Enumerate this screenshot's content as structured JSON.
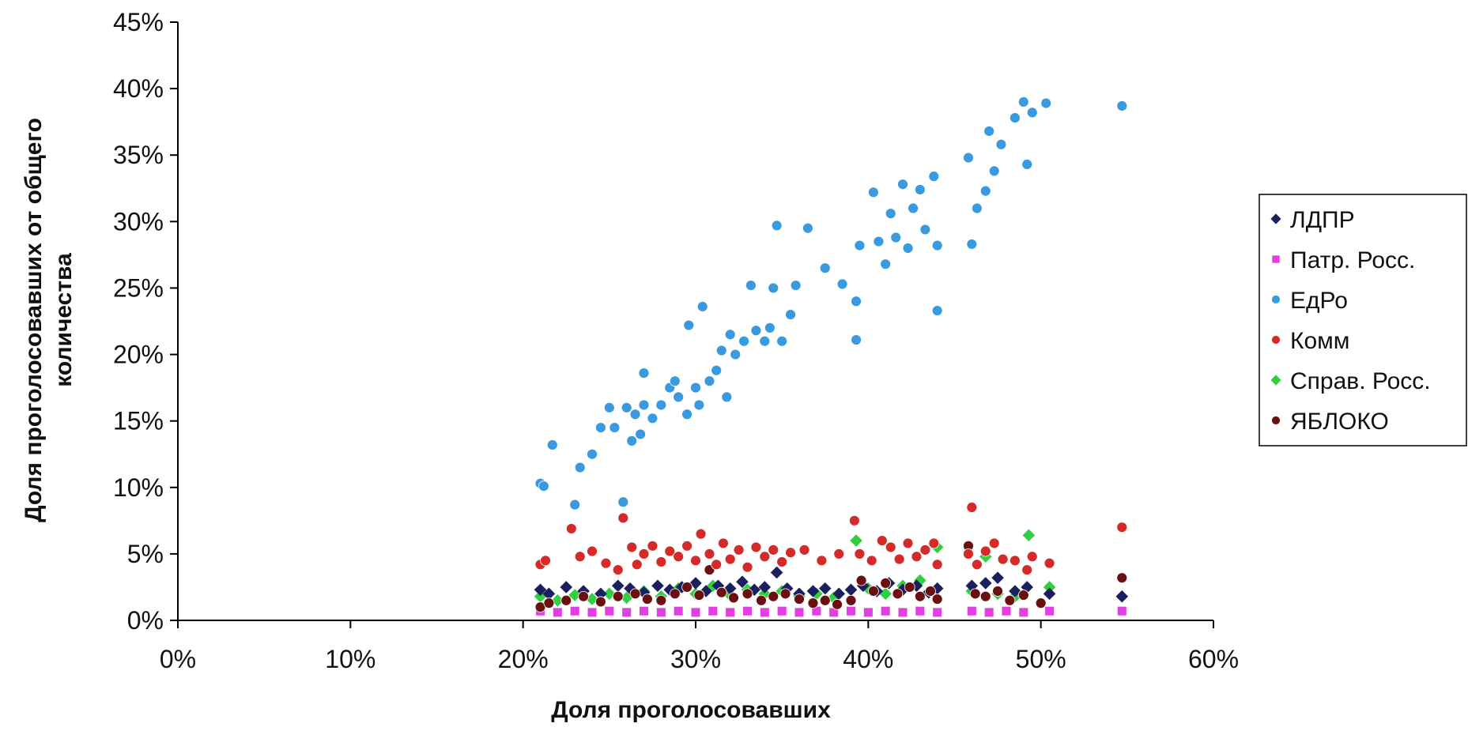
{
  "chart_data": {
    "type": "scatter",
    "title": "",
    "xlabel": "Доля проголосовавших",
    "ylabel_lines": [
      "Доля проголосовавших от общего",
      "количества"
    ],
    "xlim": [
      0,
      60
    ],
    "ylim": [
      0,
      45
    ],
    "x_ticks": [
      0,
      10,
      20,
      30,
      40,
      50,
      60
    ],
    "y_ticks": [
      0,
      5,
      10,
      15,
      20,
      25,
      30,
      35,
      40,
      45
    ],
    "x_tick_labels": [
      "0%",
      "10%",
      "20%",
      "30%",
      "40%",
      "50%",
      "60%"
    ],
    "y_tick_labels": [
      "0%",
      "5%",
      "10%",
      "15%",
      "20%",
      "25%",
      "30%",
      "35%",
      "40%",
      "45%"
    ],
    "grid": false,
    "legend_position": "right",
    "series": [
      {
        "name": "ЛДПР",
        "marker": "diamond",
        "color": "#1a1f5e",
        "points": [
          [
            21,
            2.3
          ],
          [
            21.5,
            2.0
          ],
          [
            22.5,
            2.5
          ],
          [
            23.5,
            2.2
          ],
          [
            24.5,
            2.0
          ],
          [
            25.5,
            2.6
          ],
          [
            26.2,
            2.4
          ],
          [
            27,
            2.1
          ],
          [
            27.8,
            2.6
          ],
          [
            28.5,
            2.3
          ],
          [
            29.2,
            2.5
          ],
          [
            30,
            2.8
          ],
          [
            30.6,
            2.2
          ],
          [
            31.3,
            2.6
          ],
          [
            32,
            2.4
          ],
          [
            32.7,
            2.9
          ],
          [
            33.4,
            2.3
          ],
          [
            34,
            2.5
          ],
          [
            34.7,
            3.6
          ],
          [
            35.3,
            2.4
          ],
          [
            36,
            2.0
          ],
          [
            36.8,
            2.2
          ],
          [
            37.5,
            2.4
          ],
          [
            38.3,
            2.0
          ],
          [
            39,
            2.3
          ],
          [
            39.7,
            2.6
          ],
          [
            40.5,
            2.2
          ],
          [
            41.2,
            2.8
          ],
          [
            42,
            2.3
          ],
          [
            42.8,
            2.6
          ],
          [
            43.5,
            2.1
          ],
          [
            44,
            2.4
          ],
          [
            46,
            2.6
          ],
          [
            46.8,
            2.8
          ],
          [
            47.5,
            3.2
          ],
          [
            48.5,
            2.2
          ],
          [
            49.2,
            2.5
          ],
          [
            50.5,
            2.0
          ],
          [
            54.7,
            1.8
          ]
        ]
      },
      {
        "name": "Патр. Росс.",
        "marker": "square",
        "color": "#e040e0",
        "points": [
          [
            21,
            0.7
          ],
          [
            22,
            0.6
          ],
          [
            23,
            0.7
          ],
          [
            24,
            0.6
          ],
          [
            25,
            0.7
          ],
          [
            26,
            0.6
          ],
          [
            27,
            0.7
          ],
          [
            28,
            0.6
          ],
          [
            29,
            0.7
          ],
          [
            30,
            0.6
          ],
          [
            31,
            0.7
          ],
          [
            32,
            0.6
          ],
          [
            33,
            0.7
          ],
          [
            34,
            0.6
          ],
          [
            35,
            0.7
          ],
          [
            36,
            0.6
          ],
          [
            37,
            0.7
          ],
          [
            38,
            0.6
          ],
          [
            39,
            0.7
          ],
          [
            40,
            0.6
          ],
          [
            41,
            0.7
          ],
          [
            42,
            0.6
          ],
          [
            43,
            0.7
          ],
          [
            44,
            0.6
          ],
          [
            46,
            0.7
          ],
          [
            47,
            0.6
          ],
          [
            48,
            0.7
          ],
          [
            49,
            0.6
          ],
          [
            50.5,
            0.7
          ],
          [
            54.7,
            0.7
          ]
        ]
      },
      {
        "name": "ЕдРо",
        "marker": "circle",
        "color": "#3a9ae0",
        "points": [
          [
            21,
            10.3
          ],
          [
            21.2,
            10.1
          ],
          [
            21.7,
            13.2
          ],
          [
            23,
            8.7
          ],
          [
            23.3,
            11.5
          ],
          [
            24,
            12.5
          ],
          [
            24.5,
            14.5
          ],
          [
            25,
            16
          ],
          [
            25.3,
            14.5
          ],
          [
            25.8,
            8.9
          ],
          [
            26,
            16
          ],
          [
            26.3,
            13.5
          ],
          [
            26.5,
            15.5
          ],
          [
            26.8,
            14
          ],
          [
            27,
            16.2
          ],
          [
            27,
            18.6
          ],
          [
            27.5,
            15.2
          ],
          [
            28,
            16.2
          ],
          [
            28.5,
            17.5
          ],
          [
            28.8,
            18
          ],
          [
            29,
            16.8
          ],
          [
            29.5,
            15.5
          ],
          [
            29.6,
            22.2
          ],
          [
            30,
            17.5
          ],
          [
            30.2,
            16.2
          ],
          [
            30.4,
            23.6
          ],
          [
            30.8,
            18
          ],
          [
            31.2,
            18.8
          ],
          [
            31.5,
            20.3
          ],
          [
            31.8,
            16.8
          ],
          [
            32,
            21.5
          ],
          [
            32.3,
            20
          ],
          [
            32.8,
            21
          ],
          [
            33.2,
            25.2
          ],
          [
            33.5,
            21.8
          ],
          [
            34,
            21
          ],
          [
            34.3,
            22
          ],
          [
            34.5,
            25
          ],
          [
            34.7,
            29.7
          ],
          [
            35,
            21
          ],
          [
            35.5,
            23
          ],
          [
            35.8,
            25.2
          ],
          [
            36.5,
            29.5
          ],
          [
            37.5,
            26.5
          ],
          [
            38.5,
            25.3
          ],
          [
            39.3,
            21.1
          ],
          [
            39.3,
            24
          ],
          [
            39.5,
            28.2
          ],
          [
            40.3,
            32.2
          ],
          [
            40.6,
            28.5
          ],
          [
            41,
            26.8
          ],
          [
            41.3,
            30.6
          ],
          [
            41.6,
            28.8
          ],
          [
            42,
            32.8
          ],
          [
            42.3,
            28
          ],
          [
            42.6,
            31
          ],
          [
            43,
            32.4
          ],
          [
            43.3,
            29.4
          ],
          [
            43.8,
            33.4
          ],
          [
            44,
            23.3
          ],
          [
            44,
            28.2
          ],
          [
            45.8,
            34.8
          ],
          [
            46,
            28.3
          ],
          [
            46.3,
            31
          ],
          [
            46.8,
            32.3
          ],
          [
            47,
            36.8
          ],
          [
            47.3,
            33.8
          ],
          [
            47.7,
            35.8
          ],
          [
            48.5,
            37.8
          ],
          [
            49,
            39
          ],
          [
            49.2,
            34.3
          ],
          [
            49.5,
            38.2
          ],
          [
            50.3,
            38.9
          ],
          [
            54.7,
            38.7
          ]
        ]
      },
      {
        "name": "Комм",
        "marker": "circle",
        "color": "#d42a2a",
        "points": [
          [
            21,
            4.2
          ],
          [
            21.3,
            4.5
          ],
          [
            22.8,
            6.9
          ],
          [
            23.3,
            4.8
          ],
          [
            24,
            5.2
          ],
          [
            24.8,
            4.3
          ],
          [
            25.5,
            3.8
          ],
          [
            25.8,
            7.7
          ],
          [
            26.3,
            5.5
          ],
          [
            26.6,
            4.2
          ],
          [
            27,
            5.0
          ],
          [
            27.5,
            5.6
          ],
          [
            28,
            4.4
          ],
          [
            28.5,
            5.2
          ],
          [
            29,
            4.8
          ],
          [
            29.5,
            5.6
          ],
          [
            30,
            4.5
          ],
          [
            30.3,
            6.5
          ],
          [
            30.8,
            5.0
          ],
          [
            31.2,
            4.2
          ],
          [
            31.6,
            5.8
          ],
          [
            32,
            4.6
          ],
          [
            32.5,
            5.3
          ],
          [
            33,
            4.0
          ],
          [
            33.5,
            5.5
          ],
          [
            34,
            4.8
          ],
          [
            34.5,
            5.3
          ],
          [
            35,
            4.4
          ],
          [
            35.5,
            5.1
          ],
          [
            36.3,
            5.3
          ],
          [
            37.3,
            4.5
          ],
          [
            38.3,
            5.0
          ],
          [
            39.2,
            7.5
          ],
          [
            39.5,
            5.0
          ],
          [
            40.2,
            4.5
          ],
          [
            40.8,
            6.0
          ],
          [
            41.3,
            5.5
          ],
          [
            41.8,
            4.6
          ],
          [
            42.3,
            5.8
          ],
          [
            42.8,
            4.8
          ],
          [
            43.3,
            5.3
          ],
          [
            43.8,
            5.8
          ],
          [
            44,
            4.2
          ],
          [
            45.8,
            5.0
          ],
          [
            46,
            8.5
          ],
          [
            46.3,
            4.2
          ],
          [
            46.8,
            5.2
          ],
          [
            47.3,
            5.8
          ],
          [
            47.8,
            4.6
          ],
          [
            48.5,
            4.5
          ],
          [
            49.2,
            3.8
          ],
          [
            49.5,
            4.8
          ],
          [
            50.5,
            4.3
          ],
          [
            54.7,
            7.0
          ]
        ]
      },
      {
        "name": "Справ. Росс.",
        "marker": "diamond",
        "color": "#30d040",
        "points": [
          [
            21,
            1.8
          ],
          [
            22,
            1.5
          ],
          [
            23,
            1.9
          ],
          [
            24,
            1.6
          ],
          [
            25,
            2.0
          ],
          [
            26,
            1.7
          ],
          [
            27,
            2.2
          ],
          [
            28,
            1.8
          ],
          [
            29,
            2.4
          ],
          [
            30,
            2.0
          ],
          [
            31,
            2.6
          ],
          [
            32,
            1.9
          ],
          [
            33,
            2.3
          ],
          [
            34,
            2.0
          ],
          [
            35,
            2.2
          ],
          [
            36,
            1.8
          ],
          [
            37,
            2.0
          ],
          [
            38,
            1.7
          ],
          [
            39.3,
            6.0
          ],
          [
            40,
            2.4
          ],
          [
            41,
            2.0
          ],
          [
            42,
            2.6
          ],
          [
            43,
            3.0
          ],
          [
            44,
            5.5
          ],
          [
            46,
            2.2
          ],
          [
            46.8,
            4.8
          ],
          [
            47.5,
            2.0
          ],
          [
            48.5,
            1.8
          ],
          [
            49.3,
            6.4
          ],
          [
            50.5,
            2.5
          ]
        ]
      },
      {
        "name": "ЯБЛОКО",
        "marker": "circle",
        "color": "#6a1010",
        "points": [
          [
            21,
            1.0
          ],
          [
            21.5,
            1.3
          ],
          [
            22.5,
            1.5
          ],
          [
            23.5,
            1.8
          ],
          [
            24.5,
            1.4
          ],
          [
            25.5,
            1.8
          ],
          [
            26.5,
            2.0
          ],
          [
            27.2,
            1.6
          ],
          [
            28,
            1.5
          ],
          [
            28.8,
            2.0
          ],
          [
            29.5,
            2.5
          ],
          [
            30.2,
            1.9
          ],
          [
            30.8,
            3.8
          ],
          [
            31.5,
            2.1
          ],
          [
            32.2,
            1.7
          ],
          [
            33,
            2.0
          ],
          [
            33.8,
            1.5
          ],
          [
            34.5,
            1.8
          ],
          [
            35.2,
            2.0
          ],
          [
            36,
            1.6
          ],
          [
            36.8,
            1.3
          ],
          [
            37.5,
            1.5
          ],
          [
            38.2,
            1.2
          ],
          [
            39,
            1.5
          ],
          [
            39.6,
            3.0
          ],
          [
            40.3,
            2.2
          ],
          [
            41,
            2.8
          ],
          [
            41.7,
            2.0
          ],
          [
            42.4,
            2.5
          ],
          [
            43,
            1.8
          ],
          [
            43.6,
            2.2
          ],
          [
            44,
            1.6
          ],
          [
            45.8,
            5.6
          ],
          [
            46.2,
            2.0
          ],
          [
            46.8,
            1.8
          ],
          [
            47.5,
            2.2
          ],
          [
            48.2,
            1.5
          ],
          [
            49,
            1.9
          ],
          [
            50,
            1.3
          ],
          [
            54.7,
            3.2
          ]
        ]
      }
    ]
  }
}
